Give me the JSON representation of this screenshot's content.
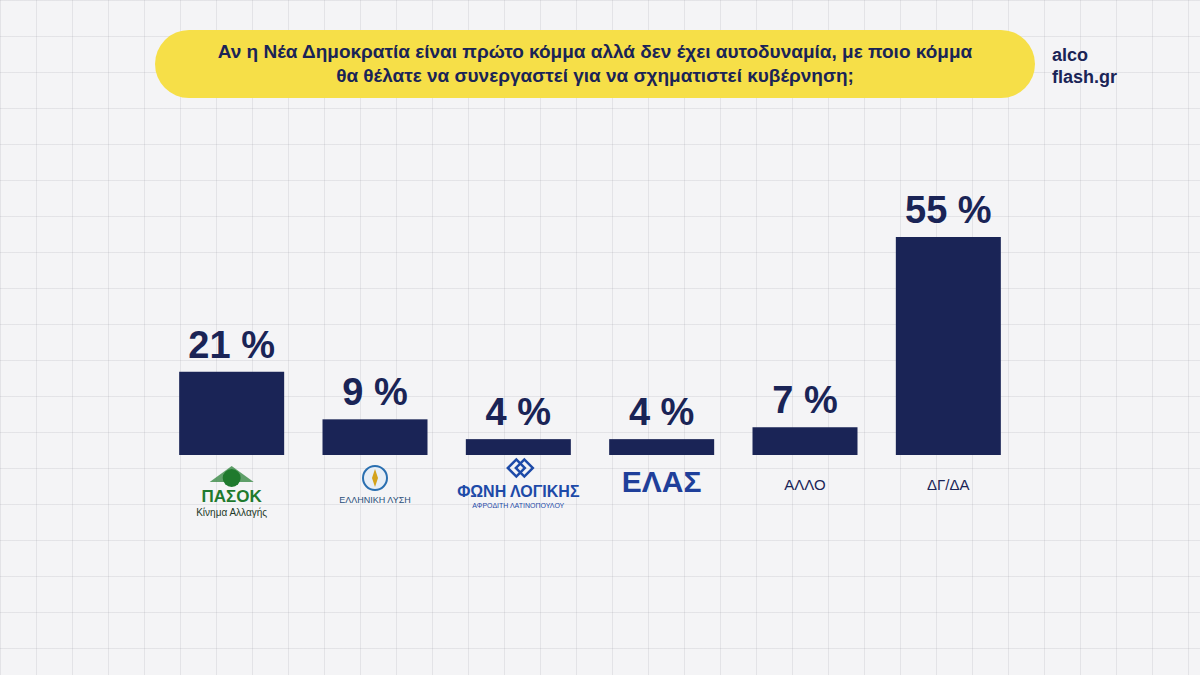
{
  "chart_data": {
    "type": "bar",
    "title": "Αν η Νέα Δημοκρατία είναι πρώτο κόμμα αλλά δεν έχει αυτοδυναμία, με ποιο κόμμα θα θέλατε να συνεργαστεί για να σχηματιστεί κυβέρνηση;",
    "source": [
      "alco",
      "flash.gr"
    ],
    "categories": [
      "ΠΑΣΟΚ",
      "ΕΛΛΗΝΙΚΗ ΛΥΣΗ",
      "ΦΩΝΗ ΛΟΓΙΚΗΣ",
      "ΕΛΑΣ",
      "ΑΛΛΟ",
      "ΔΓ/ΔΑ"
    ],
    "category_subtitles": [
      "Κίνημα Αλλαγής",
      null,
      "ΑΦΡΟΔΙΤΗ ΛΑΤΙΝΟΠΟΥΛΟΥ",
      null,
      null,
      null
    ],
    "values": [
      21,
      9,
      4,
      4,
      7,
      55
    ],
    "value_labels": [
      "21 %",
      "9 %",
      "4 %",
      "4 %",
      "7 %",
      "55 %"
    ],
    "color": "#1a2456",
    "ylim": [
      0,
      55
    ],
    "grid": false,
    "data_labels": true,
    "tick_labels": "x"
  }
}
